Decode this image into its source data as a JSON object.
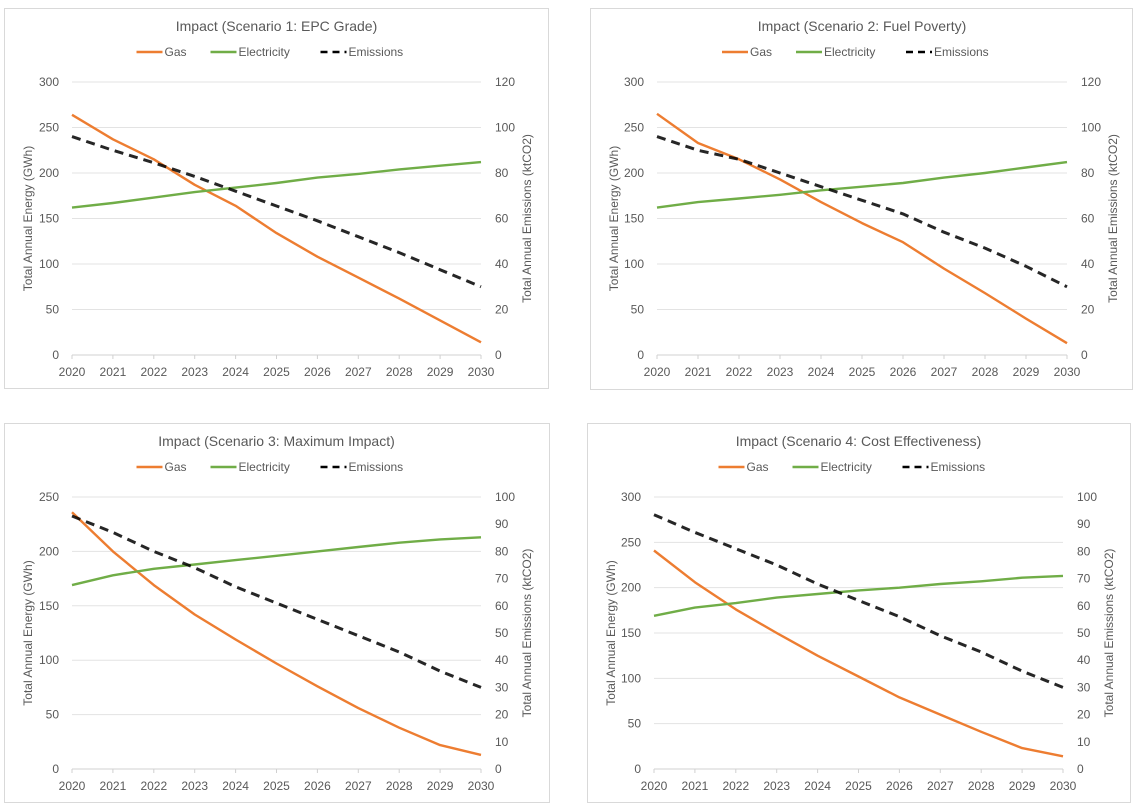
{
  "chart_data": [
    {
      "type": "line",
      "title": "Impact (Scenario 1: EPC Grade)",
      "x": [
        "2020",
        "2021",
        "2022",
        "2023",
        "2024",
        "2025",
        "2026",
        "2027",
        "2028",
        "2029",
        "2030"
      ],
      "ylabel": "Total Annual Energy (GWh)",
      "y2label": "Total Annual Emissions (ktCO2)",
      "ylim": [
        0,
        300
      ],
      "yticks": [
        0,
        50,
        100,
        150,
        200,
        250,
        300
      ],
      "y2lim": [
        0,
        120
      ],
      "y2ticks": [
        0,
        20,
        40,
        60,
        80,
        100,
        120
      ],
      "grid": true,
      "legend_position": "top",
      "series": [
        {
          "name": "Gas",
          "axis": "left",
          "color": "#ED7D31",
          "style": "solid",
          "values": [
            264,
            237,
            215,
            187,
            164,
            134,
            108,
            85,
            62,
            38,
            14
          ]
        },
        {
          "name": "Electricity",
          "axis": "left",
          "color": "#70AD47",
          "style": "solid",
          "values": [
            162,
            167,
            173,
            179,
            184,
            189,
            195,
            199,
            204,
            208,
            212
          ]
        },
        {
          "name": "Emissions",
          "axis": "right",
          "color": "#000000",
          "style": "dashed",
          "values": [
            96,
            90,
            84.5,
            78.5,
            72,
            65.5,
            59,
            52,
            45,
            37.5,
            30
          ]
        }
      ]
    },
    {
      "type": "line",
      "title": "Impact (Scenario 2: Fuel Poverty)",
      "x": [
        "2020",
        "2021",
        "2022",
        "2023",
        "2024",
        "2025",
        "2026",
        "2027",
        "2028",
        "2029",
        "2030"
      ],
      "ylabel": "Total Annual Energy (GWh)",
      "y2label": "Total Annual Emissions (ktCO2)",
      "ylim": [
        0,
        300
      ],
      "yticks": [
        0,
        50,
        100,
        150,
        200,
        250,
        300
      ],
      "y2lim": [
        0,
        120
      ],
      "y2ticks": [
        0,
        20,
        40,
        60,
        80,
        100,
        120
      ],
      "grid": true,
      "legend_position": "top",
      "series": [
        {
          "name": "Gas",
          "axis": "left",
          "color": "#ED7D31",
          "style": "solid",
          "values": [
            265,
            233,
            215,
            193,
            168,
            145,
            124,
            95,
            68,
            40,
            13
          ]
        },
        {
          "name": "Electricity",
          "axis": "left",
          "color": "#70AD47",
          "style": "solid",
          "values": [
            162,
            168,
            172,
            176,
            181,
            185,
            189,
            195,
            200,
            206,
            212
          ]
        },
        {
          "name": "Emissions",
          "axis": "right",
          "color": "#000000",
          "style": "dashed",
          "values": [
            96,
            90,
            86,
            80,
            74,
            68,
            62,
            54,
            47,
            39,
            30
          ]
        }
      ]
    },
    {
      "type": "line",
      "title": "Impact (Scenario 3: Maximum Impact)",
      "x": [
        "2020",
        "2021",
        "2022",
        "2023",
        "2024",
        "2025",
        "2026",
        "2027",
        "2028",
        "2029",
        "2030"
      ],
      "ylabel": "Total Annual Energy (GWh)",
      "y2label": "Total Annual Emissions (ktCO2)",
      "ylim": [
        0,
        250
      ],
      "yticks": [
        0,
        50,
        100,
        150,
        200,
        250
      ],
      "y2lim": [
        0,
        100
      ],
      "y2ticks": [
        0,
        10,
        20,
        30,
        40,
        50,
        60,
        70,
        80,
        90,
        100
      ],
      "grid": true,
      "legend_position": "top",
      "series": [
        {
          "name": "Gas",
          "axis": "left",
          "color": "#ED7D31",
          "style": "solid",
          "values": [
            236,
            200,
            169,
            142,
            119,
            97,
            76,
            56,
            38,
            22,
            13
          ]
        },
        {
          "name": "Electricity",
          "axis": "left",
          "color": "#70AD47",
          "style": "solid",
          "values": [
            169,
            178,
            184,
            188,
            192,
            196,
            200,
            204,
            208,
            211,
            213
          ]
        },
        {
          "name": "Emissions",
          "axis": "right",
          "color": "#000000",
          "style": "dashed",
          "values": [
            93,
            87,
            80,
            74,
            67,
            61,
            55,
            49,
            43,
            36,
            30
          ]
        }
      ]
    },
    {
      "type": "line",
      "title": "Impact (Scenario 4: Cost Effectiveness)",
      "x": [
        "2020",
        "2021",
        "2022",
        "2023",
        "2024",
        "2025",
        "2026",
        "2027",
        "2028",
        "2029",
        "2030"
      ],
      "ylabel": "Total Annual Energy (GWh)",
      "y2label": "Total Annual Emissions (ktCO2)",
      "ylim": [
        0,
        300
      ],
      "yticks": [
        0,
        50,
        100,
        150,
        200,
        250,
        300
      ],
      "y2lim": [
        0,
        100
      ],
      "y2ticks": [
        0,
        10,
        20,
        30,
        40,
        50,
        60,
        70,
        80,
        90,
        100
      ],
      "grid": true,
      "legend_position": "top",
      "series": [
        {
          "name": "Gas",
          "axis": "left",
          "color": "#ED7D31",
          "style": "solid",
          "values": [
            241,
            206,
            176,
            150,
            125,
            102,
            79,
            60,
            41,
            23,
            14
          ]
        },
        {
          "name": "Electricity",
          "axis": "left",
          "color": "#70AD47",
          "style": "solid",
          "values": [
            169,
            178,
            183,
            189,
            193,
            197,
            200,
            204,
            207,
            211,
            213
          ]
        },
        {
          "name": "Emissions",
          "axis": "right",
          "color": "#000000",
          "style": "dashed",
          "values": [
            93.5,
            87,
            81,
            75,
            68,
            62,
            56,
            49,
            43,
            36,
            30
          ]
        }
      ]
    }
  ]
}
